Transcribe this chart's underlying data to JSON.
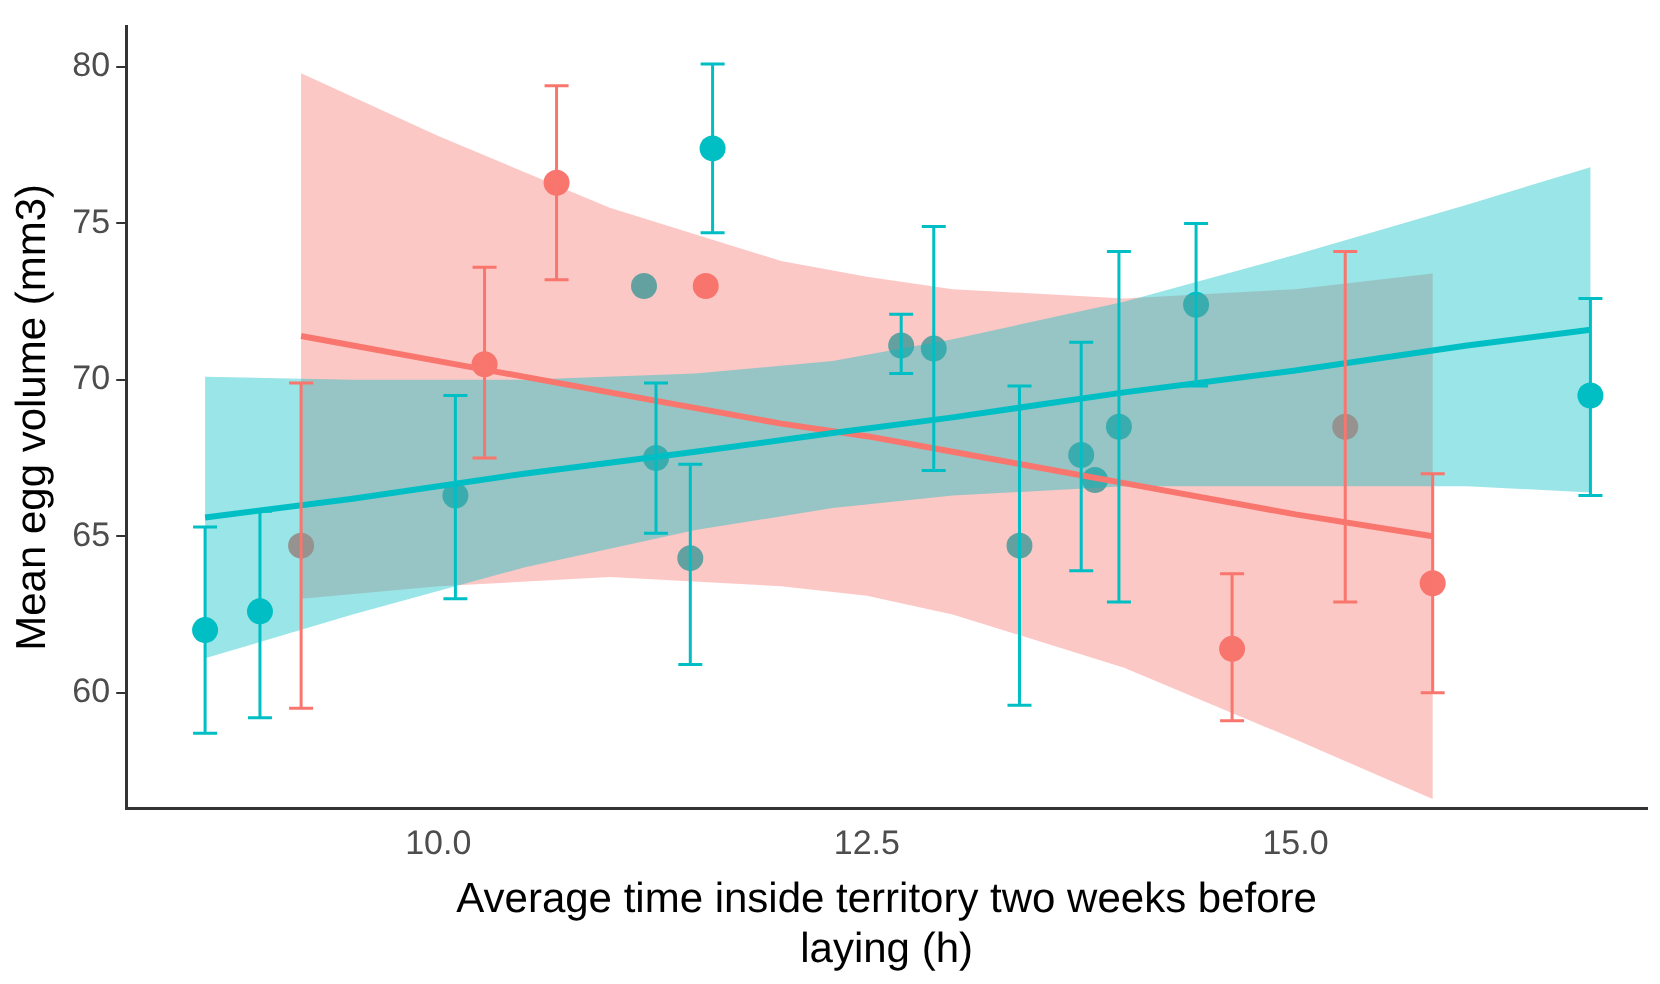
{
  "chart_data": {
    "type": "scatter",
    "xlabel": "Average time inside territory two weeks before laying (h)",
    "ylabel": "Mean egg volume (mm3)",
    "xlim": [
      8.18,
      17.05
    ],
    "xticks": [
      {
        "value": 10,
        "label": "10.0"
      },
      {
        "value": 12.5,
        "label": "12.5"
      },
      {
        "value": 15,
        "label": "15.0"
      }
    ],
    "ylim": [
      56.3,
      81.3
    ],
    "yticks": [
      60,
      65,
      70,
      75,
      80
    ],
    "grid": false,
    "legend": false,
    "series": [
      {
        "type": "scatter",
        "color": "#f8766d",
        "marker": "circle",
        "x": [
          9.2,
          10.27,
          10.69,
          11.56,
          14.63,
          15.29,
          15.8
        ],
        "values": [
          64.7,
          70.5,
          76.3,
          73.0,
          61.4,
          68.5,
          63.5
        ],
        "errors": [
          [
            59.5,
            69.9
          ],
          [
            67.5,
            73.6
          ],
          [
            73.2,
            79.4
          ],
          null,
          [
            59.1,
            63.8
          ],
          [
            62.9,
            74.1
          ],
          [
            60.0,
            67.0
          ]
        ]
      },
      {
        "type": "scatter",
        "color": "#00bfc4",
        "marker": "circle",
        "x": [
          8.64,
          8.96,
          10.1,
          11.2,
          11.27,
          11.47,
          11.6,
          12.7,
          12.89,
          13.39,
          13.75,
          13.83,
          13.97,
          14.42,
          16.72
        ],
        "values": [
          62.0,
          62.6,
          66.3,
          73.0,
          67.5,
          64.3,
          77.4,
          71.1,
          71.0,
          64.7,
          67.6,
          66.8,
          68.5,
          72.4,
          69.5
        ],
        "errors": [
          [
            58.7,
            65.3
          ],
          [
            59.2,
            65.8
          ],
          [
            63.0,
            69.5
          ],
          null,
          [
            65.1,
            69.9
          ],
          [
            60.9,
            67.3
          ],
          [
            74.7,
            80.1
          ],
          [
            70.2,
            72.1
          ],
          [
            67.1,
            74.9
          ],
          [
            59.6,
            69.8
          ],
          [
            63.9,
            71.2
          ],
          null,
          [
            62.9,
            74.1
          ],
          [
            69.8,
            75.0
          ],
          [
            66.3,
            72.6
          ]
        ]
      },
      {
        "type": "line",
        "color": "#f8766d",
        "marker": "none",
        "x": [
          9.2,
          10,
          11,
          12,
          12.5,
          13,
          14,
          15,
          15.8
        ],
        "values": [
          71.4,
          70.6,
          69.6,
          68.6,
          68.2,
          67.7,
          66.7,
          65.7,
          65.0
        ],
        "lower": [
          63.0,
          63.4,
          63.7,
          63.4,
          63.1,
          62.5,
          60.8,
          58.5,
          56.6
        ],
        "upper": [
          79.8,
          77.8,
          75.5,
          73.8,
          73.3,
          72.9,
          72.6,
          72.9,
          73.4
        ]
      },
      {
        "type": "line",
        "color": "#00bfc4",
        "marker": "none",
        "x": [
          8.64,
          9.5,
          10.5,
          11.5,
          12.3,
          13,
          14,
          15,
          16,
          16.72
        ],
        "values": [
          65.6,
          66.2,
          67.0,
          67.7,
          68.3,
          68.8,
          69.6,
          70.3,
          71.1,
          71.6
        ],
        "lower": [
          61.1,
          62.5,
          64.0,
          65.2,
          65.9,
          66.3,
          66.6,
          66.6,
          66.6,
          66.4
        ],
        "upper": [
          70.1,
          70.0,
          70.0,
          70.2,
          70.6,
          71.3,
          72.5,
          74.0,
          75.6,
          76.8
        ]
      }
    ]
  }
}
